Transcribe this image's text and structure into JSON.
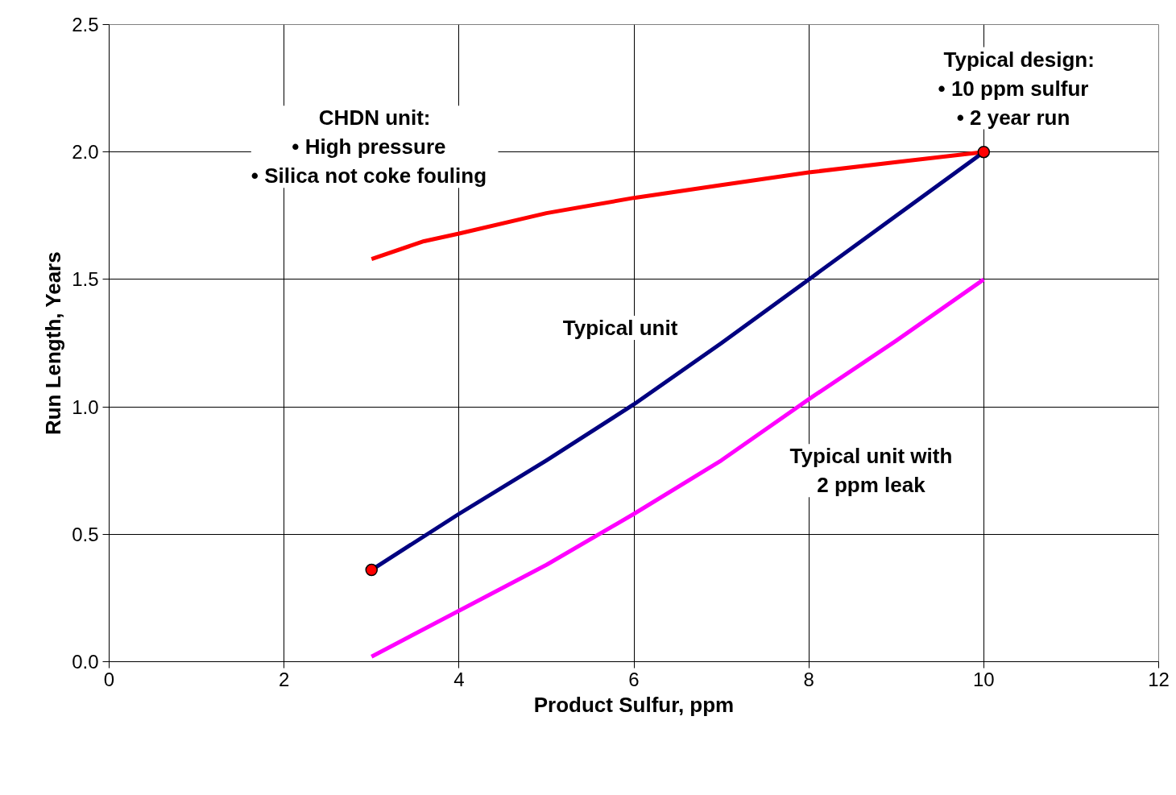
{
  "chart_data": {
    "type": "line",
    "xlabel": "Product Sulfur, ppm",
    "ylabel": "Run Length, Years",
    "xlim": [
      0,
      12
    ],
    "ylim": [
      0,
      2.5
    ],
    "xticks": [
      0,
      2,
      4,
      6,
      8,
      10,
      12
    ],
    "yticks": [
      {
        "value": 0,
        "label": "0.0"
      },
      0.5,
      {
        "value": 1,
        "label": "1.0"
      },
      1.5,
      {
        "value": 2,
        "label": "2.0"
      },
      2.5
    ],
    "grid": true,
    "series": [
      {
        "color": "#ff0000",
        "x": [
          3,
          3.6,
          4,
          5,
          6,
          7,
          8,
          9,
          10
        ],
        "values": [
          1.58,
          1.65,
          1.68,
          1.76,
          1.82,
          1.87,
          1.92,
          1.96,
          2.0
        ]
      },
      {
        "color": "#000080",
        "x": [
          3,
          4,
          5,
          6,
          7,
          8,
          9,
          10
        ],
        "values": [
          0.36,
          0.58,
          0.79,
          1.01,
          1.25,
          1.5,
          1.75,
          2.0
        ]
      },
      {
        "color": "#ff00ff",
        "x": [
          3,
          4,
          5,
          6,
          7,
          8,
          9,
          10
        ],
        "values": [
          0.02,
          0.2,
          0.38,
          0.58,
          0.79,
          1.03,
          1.26,
          1.5
        ]
      },
      {
        "type": "scatter",
        "marker": "circle",
        "color": "#ff0000",
        "x": [
          3,
          10
        ],
        "values": [
          0.36,
          2.0
        ]
      }
    ],
    "annotations": [
      "CHDN unit:\n  • High pressure\n  • Silica not coke fouling",
      "Typical design:\n  • 10 ppm sulfur\n  • 2 year run",
      "Typical unit",
      "Typical unit with\n2 ppm leak"
    ]
  }
}
